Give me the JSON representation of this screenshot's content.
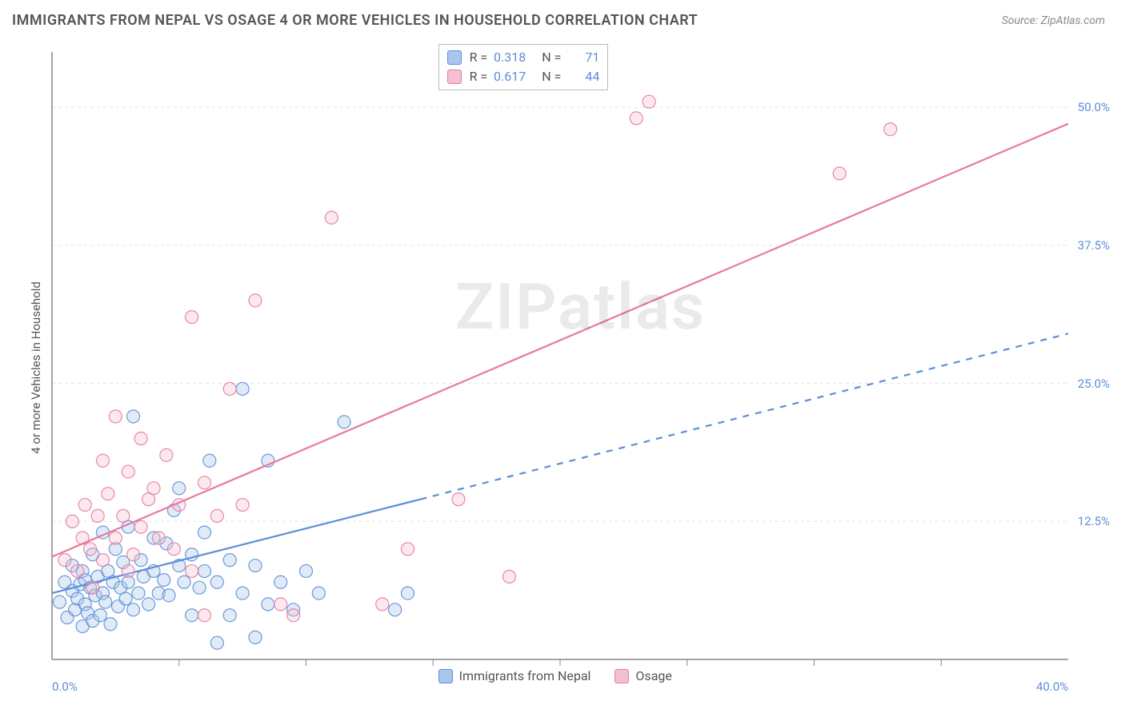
{
  "title": "IMMIGRANTS FROM NEPAL VS OSAGE 4 OR MORE VEHICLES IN HOUSEHOLD CORRELATION CHART",
  "source": "Source: ZipAtlas.com",
  "watermark": "ZIPatlas",
  "y_axis_label": "4 or more Vehicles in Household",
  "chart": {
    "type": "scatter-with-regression",
    "xlim": [
      0,
      40
    ],
    "ylim": [
      0,
      55
    ],
    "x_ticks_major_pct": [
      0,
      40
    ],
    "x_ticks_minor_step": 5,
    "y_ticks_major_pct": [
      12.5,
      25.0,
      37.5,
      50.0
    ],
    "background_color": "#ffffff",
    "grid_color": "#e4e4e4",
    "grid_dash": "4,4",
    "axis_color": "#888888",
    "marker_radius": 8,
    "marker_stroke_opacity": 0.9,
    "marker_fill_opacity": 0.35,
    "line_width": 2.2
  },
  "series": [
    {
      "name": "Immigrants from Nepal",
      "color_stroke": "#5b8fd6",
      "color_fill": "#a9c6ec",
      "R": "0.318",
      "N": "71",
      "regression": {
        "x1": 0,
        "y1": 6.0,
        "x2": 14.5,
        "y2": 14.5,
        "solid": true
      },
      "regression_ext": {
        "x1": 14.5,
        "y1": 14.5,
        "x2": 40,
        "y2": 29.5
      },
      "points": [
        [
          0.3,
          5.2
        ],
        [
          0.5,
          7.0
        ],
        [
          0.6,
          3.8
        ],
        [
          0.8,
          6.2
        ],
        [
          0.8,
          8.5
        ],
        [
          0.9,
          4.5
        ],
        [
          1.0,
          5.5
        ],
        [
          1.1,
          6.8
        ],
        [
          1.2,
          3.0
        ],
        [
          1.2,
          8.0
        ],
        [
          1.3,
          5.0
        ],
        [
          1.3,
          7.2
        ],
        [
          1.4,
          4.2
        ],
        [
          1.5,
          6.5
        ],
        [
          1.6,
          3.5
        ],
        [
          1.6,
          9.5
        ],
        [
          1.7,
          5.8
        ],
        [
          1.8,
          7.5
        ],
        [
          1.9,
          4.0
        ],
        [
          2.0,
          6.0
        ],
        [
          2.0,
          11.5
        ],
        [
          2.1,
          5.2
        ],
        [
          2.2,
          8.0
        ],
        [
          2.3,
          3.2
        ],
        [
          2.4,
          7.0
        ],
        [
          2.5,
          10.0
        ],
        [
          2.6,
          4.8
        ],
        [
          2.7,
          6.5
        ],
        [
          2.8,
          8.8
        ],
        [
          2.9,
          5.5
        ],
        [
          3.0,
          12.0
        ],
        [
          3.0,
          7.0
        ],
        [
          3.2,
          4.5
        ],
        [
          3.2,
          22.0
        ],
        [
          3.4,
          6.0
        ],
        [
          3.5,
          9.0
        ],
        [
          3.6,
          7.5
        ],
        [
          3.8,
          5.0
        ],
        [
          4.0,
          8.0
        ],
        [
          4.0,
          11.0
        ],
        [
          4.2,
          6.0
        ],
        [
          4.4,
          7.2
        ],
        [
          4.5,
          10.5
        ],
        [
          4.6,
          5.8
        ],
        [
          4.8,
          13.5
        ],
        [
          5.0,
          8.5
        ],
        [
          5.0,
          15.5
        ],
        [
          5.2,
          7.0
        ],
        [
          5.5,
          9.5
        ],
        [
          5.5,
          4.0
        ],
        [
          5.8,
          6.5
        ],
        [
          6.0,
          11.5
        ],
        [
          6.0,
          8.0
        ],
        [
          6.2,
          18.0
        ],
        [
          6.5,
          7.0
        ],
        [
          6.5,
          1.5
        ],
        [
          7.0,
          4.0
        ],
        [
          7.0,
          9.0
        ],
        [
          7.5,
          6.0
        ],
        [
          7.5,
          24.5
        ],
        [
          8.0,
          8.5
        ],
        [
          8.0,
          2.0
        ],
        [
          8.5,
          5.0
        ],
        [
          8.5,
          18.0
        ],
        [
          9.0,
          7.0
        ],
        [
          9.5,
          4.5
        ],
        [
          10.0,
          8.0
        ],
        [
          10.5,
          6.0
        ],
        [
          11.5,
          21.5
        ],
        [
          13.5,
          4.5
        ],
        [
          14.0,
          6.0
        ]
      ]
    },
    {
      "name": "Osage",
      "color_stroke": "#e87a9f",
      "color_fill": "#f4bfd0",
      "R": "0.617",
      "N": "44",
      "regression": {
        "x1": 0,
        "y1": 9.3,
        "x2": 40,
        "y2": 48.5,
        "solid": true
      },
      "points": [
        [
          0.5,
          9.0
        ],
        [
          0.8,
          12.5
        ],
        [
          1.0,
          8.0
        ],
        [
          1.2,
          11.0
        ],
        [
          1.3,
          14.0
        ],
        [
          1.5,
          10.0
        ],
        [
          1.6,
          6.5
        ],
        [
          1.8,
          13.0
        ],
        [
          2.0,
          18.0
        ],
        [
          2.0,
          9.0
        ],
        [
          2.2,
          15.0
        ],
        [
          2.5,
          11.0
        ],
        [
          2.5,
          22.0
        ],
        [
          2.8,
          13.0
        ],
        [
          3.0,
          17.0
        ],
        [
          3.0,
          8.0
        ],
        [
          3.2,
          9.5
        ],
        [
          3.5,
          12.0
        ],
        [
          3.5,
          20.0
        ],
        [
          3.8,
          14.5
        ],
        [
          4.0,
          15.5
        ],
        [
          4.2,
          11.0
        ],
        [
          4.5,
          18.5
        ],
        [
          4.8,
          10.0
        ],
        [
          5.0,
          14.0
        ],
        [
          5.5,
          8.0
        ],
        [
          5.5,
          31.0
        ],
        [
          6.0,
          16.0
        ],
        [
          6.0,
          4.0
        ],
        [
          6.5,
          13.0
        ],
        [
          7.0,
          24.5
        ],
        [
          7.5,
          14.0
        ],
        [
          8.0,
          32.5
        ],
        [
          9.0,
          5.0
        ],
        [
          9.5,
          4.0
        ],
        [
          11.0,
          40.0
        ],
        [
          13.0,
          5.0
        ],
        [
          14.0,
          10.0
        ],
        [
          16.0,
          14.5
        ],
        [
          18.0,
          7.5
        ],
        [
          23.0,
          49.0
        ],
        [
          23.5,
          50.5
        ],
        [
          31.0,
          44.0
        ],
        [
          33.0,
          48.0
        ]
      ]
    }
  ],
  "bottom_legend": [
    {
      "label": "Immigrants from Nepal",
      "stroke": "#5b8fd6",
      "fill": "#a9c6ec"
    },
    {
      "label": "Osage",
      "stroke": "#e87a9f",
      "fill": "#f4bfd0"
    }
  ]
}
